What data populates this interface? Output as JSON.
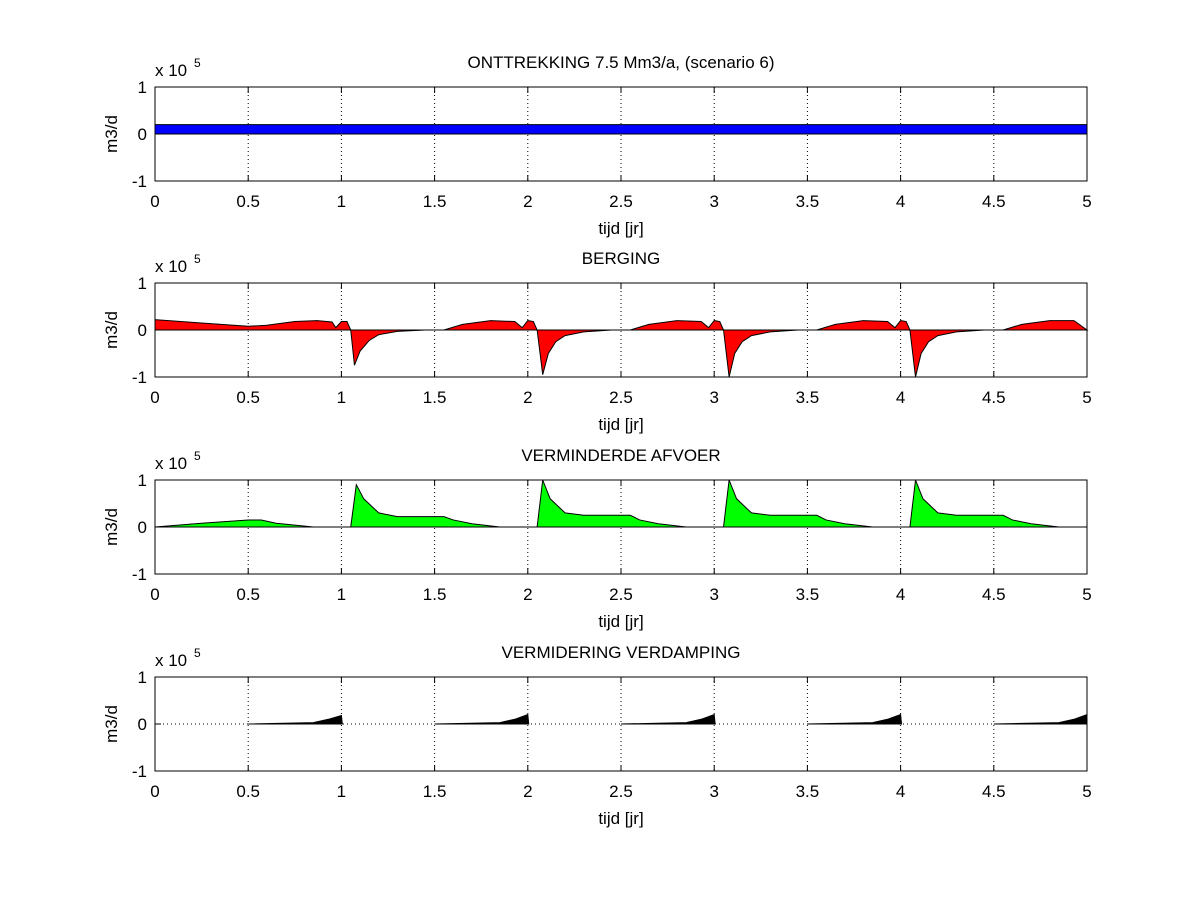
{
  "chart_data": [
    {
      "type": "area",
      "title": "ONTTREKKING 7.5 Mm3/a, (scenario 6)",
      "scale_label": "x 10",
      "scale_exponent": "5",
      "x_label": "tijd [jr]",
      "y_label": "m3/d",
      "color": "#0000ff",
      "x": [
        0,
        5
      ],
      "values": [
        0.2,
        0.2
      ],
      "xlim": [
        0,
        5
      ],
      "xticks": [
        0,
        0.5,
        1,
        1.5,
        2,
        2.5,
        3,
        3.5,
        4,
        4.5,
        5
      ],
      "ylim": [
        -1,
        1
      ],
      "yticks": [
        -1,
        0,
        1
      ],
      "grid": true
    },
    {
      "type": "area",
      "title": "BERGING",
      "scale_label": "x 10",
      "scale_exponent": "5",
      "x_label": "tijd [jr]",
      "y_label": "m3/d",
      "color": "#ff0000",
      "x": [
        0,
        0.25,
        0.5,
        0.6,
        0.75,
        0.87,
        0.95,
        0.97,
        1.0,
        1.03,
        1.05,
        1.07,
        1.1,
        1.15,
        1.2,
        1.3,
        1.45,
        1.55,
        1.65,
        1.8,
        1.93,
        1.97,
        2.0,
        2.03,
        2.05,
        2.08,
        2.11,
        2.15,
        2.2,
        2.3,
        2.45,
        2.55,
        2.65,
        2.8,
        2.93,
        2.97,
        3.0,
        3.03,
        3.05,
        3.08,
        3.11,
        3.15,
        3.2,
        3.3,
        3.45,
        3.55,
        3.65,
        3.8,
        3.93,
        3.97,
        4.0,
        4.03,
        4.05,
        4.08,
        4.11,
        4.15,
        4.2,
        4.3,
        4.45,
        4.55,
        4.65,
        4.8,
        4.93,
        5.0
      ],
      "values": [
        0.22,
        0.15,
        0.08,
        0.1,
        0.18,
        0.2,
        0.17,
        0.05,
        0.18,
        0.18,
        0,
        -0.75,
        -0.45,
        -0.22,
        -0.1,
        -0.03,
        0,
        0,
        0.12,
        0.2,
        0.18,
        0.05,
        0.2,
        0.18,
        0,
        -0.95,
        -0.5,
        -0.25,
        -0.12,
        -0.04,
        0,
        0,
        0.12,
        0.2,
        0.18,
        0.05,
        0.2,
        0.18,
        0,
        -1.0,
        -0.5,
        -0.25,
        -0.12,
        -0.04,
        0,
        0,
        0.12,
        0.2,
        0.18,
        0.05,
        0.2,
        0.18,
        0,
        -1.0,
        -0.5,
        -0.25,
        -0.12,
        -0.04,
        0,
        0,
        0.12,
        0.2,
        0.2,
        0
      ],
      "xlim": [
        0,
        5
      ],
      "xticks": [
        0,
        0.5,
        1,
        1.5,
        2,
        2.5,
        3,
        3.5,
        4,
        4.5,
        5
      ],
      "ylim": [
        -1,
        1
      ],
      "yticks": [
        -1,
        0,
        1
      ],
      "grid": true
    },
    {
      "type": "area",
      "title": "VERMINDERDE AFVOER",
      "scale_label": "x 10",
      "scale_exponent": "5",
      "x_label": "tijd [jr]",
      "y_label": "m3/d",
      "color": "#00ff00",
      "x": [
        0,
        0.25,
        0.5,
        0.57,
        0.65,
        0.85,
        1.05,
        1.08,
        1.12,
        1.2,
        1.3,
        1.55,
        1.6,
        1.7,
        1.85,
        2.05,
        2.08,
        2.12,
        2.2,
        2.3,
        2.55,
        2.6,
        2.7,
        2.85,
        3.05,
        3.08,
        3.12,
        3.2,
        3.3,
        3.55,
        3.6,
        3.7,
        3.85,
        4.05,
        4.08,
        4.12,
        4.2,
        4.3,
        4.55,
        4.6,
        4.7,
        4.85,
        5.0
      ],
      "values": [
        0,
        0.08,
        0.15,
        0.15,
        0.08,
        0,
        0,
        0.9,
        0.6,
        0.3,
        0.22,
        0.22,
        0.15,
        0.07,
        0,
        0,
        1.0,
        0.6,
        0.3,
        0.25,
        0.25,
        0.15,
        0.07,
        0,
        0,
        1.0,
        0.6,
        0.3,
        0.25,
        0.25,
        0.15,
        0.07,
        0,
        0,
        1.0,
        0.6,
        0.3,
        0.25,
        0.25,
        0.15,
        0.07,
        0,
        0
      ],
      "xlim": [
        0,
        5
      ],
      "xticks": [
        0,
        0.5,
        1,
        1.5,
        2,
        2.5,
        3,
        3.5,
        4,
        4.5,
        5
      ],
      "ylim": [
        -1,
        1
      ],
      "yticks": [
        -1,
        0,
        1
      ],
      "grid": true
    },
    {
      "type": "area",
      "title": "VERMIDERING VERDAMPING",
      "scale_label": "x 10",
      "scale_exponent": "5",
      "x_label": "tijd [jr]",
      "y_label": "m3/d",
      "color": "#000000",
      "x": [
        0.5,
        0.85,
        0.93,
        1.0,
        1.005,
        1.25,
        1.5,
        1.85,
        1.93,
        2.0,
        2.005,
        2.25,
        2.5,
        2.85,
        2.93,
        3.0,
        3.005,
        3.25,
        3.5,
        3.85,
        3.93,
        4.0,
        4.005,
        4.25,
        4.5,
        4.85,
        4.93,
        5.0
      ],
      "values": [
        0,
        0.03,
        0.1,
        0.18,
        0,
        null,
        0,
        0.03,
        0.1,
        0.2,
        0,
        null,
        0,
        0.03,
        0.1,
        0.2,
        0,
        null,
        0,
        0.03,
        0.1,
        0.2,
        0,
        null,
        0,
        0.03,
        0.1,
        0.2
      ],
      "xlim": [
        0,
        5
      ],
      "xticks": [
        0,
        0.5,
        1,
        1.5,
        2,
        2.5,
        3,
        3.5,
        4,
        4.5,
        5
      ],
      "ylim": [
        -1,
        1
      ],
      "yticks": [
        -1,
        0,
        1
      ],
      "grid": true
    }
  ]
}
